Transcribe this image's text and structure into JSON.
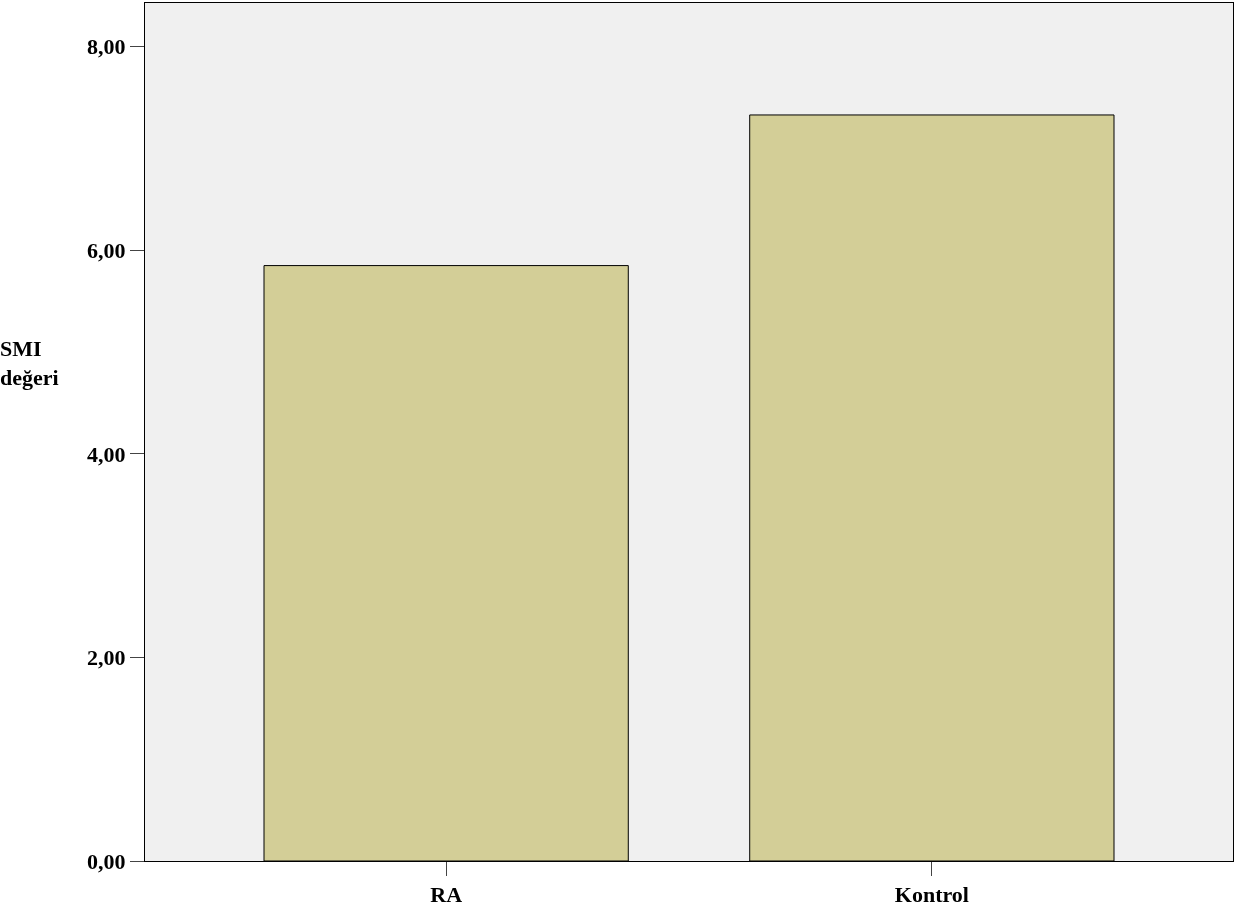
{
  "chart_data": {
    "type": "bar",
    "ylabel": "SMI değeri",
    "categories": [
      "RA",
      "Kontrol"
    ],
    "values": [
      5.85,
      7.33
    ],
    "color": "#d3ce97",
    "ylim": [
      0,
      8.43
    ],
    "yticks": [
      {
        "value": 0,
        "label": "0,00"
      },
      {
        "value": 2,
        "label": "2,00"
      },
      {
        "value": 4,
        "label": "4,00"
      },
      {
        "value": 6,
        "label": "6,00"
      },
      {
        "value": 8,
        "label": "8,00"
      }
    ],
    "grid": false,
    "legend": false
  }
}
